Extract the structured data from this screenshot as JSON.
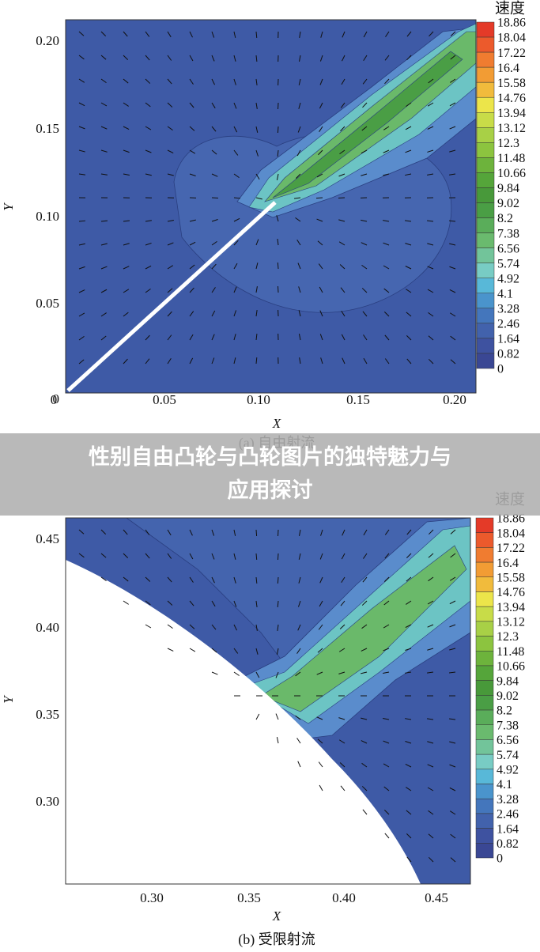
{
  "banner": {
    "lines": [
      "性别自由凸轮与凸轮图片的独特魅力与",
      "应用探讨"
    ]
  },
  "panels": [
    {
      "legend_title": "速度",
      "caption": "(a) 自由射流",
      "x_label": "X",
      "y_label": "Y",
      "x_ticks": [
        "0",
        "0.05",
        "0.10",
        "0.15",
        "0.20"
      ],
      "y_ticks": [
        "0.20",
        "0.15",
        "0.10",
        "0.05",
        "0"
      ],
      "levels": [
        "18.86",
        "18.04",
        "17.22",
        "16.4",
        "15.58",
        "14.76",
        "13.94",
        "13.12",
        "12.3",
        "11.48",
        "10.66",
        "9.84",
        "9.02",
        "8.2",
        "7.38",
        "6.56",
        "5.74",
        "4.92",
        "4.1",
        "3.28",
        "2.46",
        "1.64",
        "0.82",
        "0"
      ]
    },
    {
      "legend_title": "速度",
      "caption": "(b) 受限射流",
      "x_label": "X",
      "y_label": "Y",
      "x_ticks": [
        "0.30",
        "0.35",
        "0.40",
        "0.45"
      ],
      "y_ticks": [
        "0.45",
        "0.40",
        "0.35",
        "0.30"
      ],
      "levels": [
        "18.86",
        "18.04",
        "17.22",
        "16.4",
        "15.58",
        "14.76",
        "13.94",
        "13.12",
        "12.3",
        "11.48",
        "10.66",
        "9.84",
        "9.02",
        "8.2",
        "7.38",
        "6.56",
        "5.74",
        "4.92",
        "4.1",
        "3.28",
        "2.46",
        "1.64",
        "0.82",
        "0"
      ]
    }
  ]
}
